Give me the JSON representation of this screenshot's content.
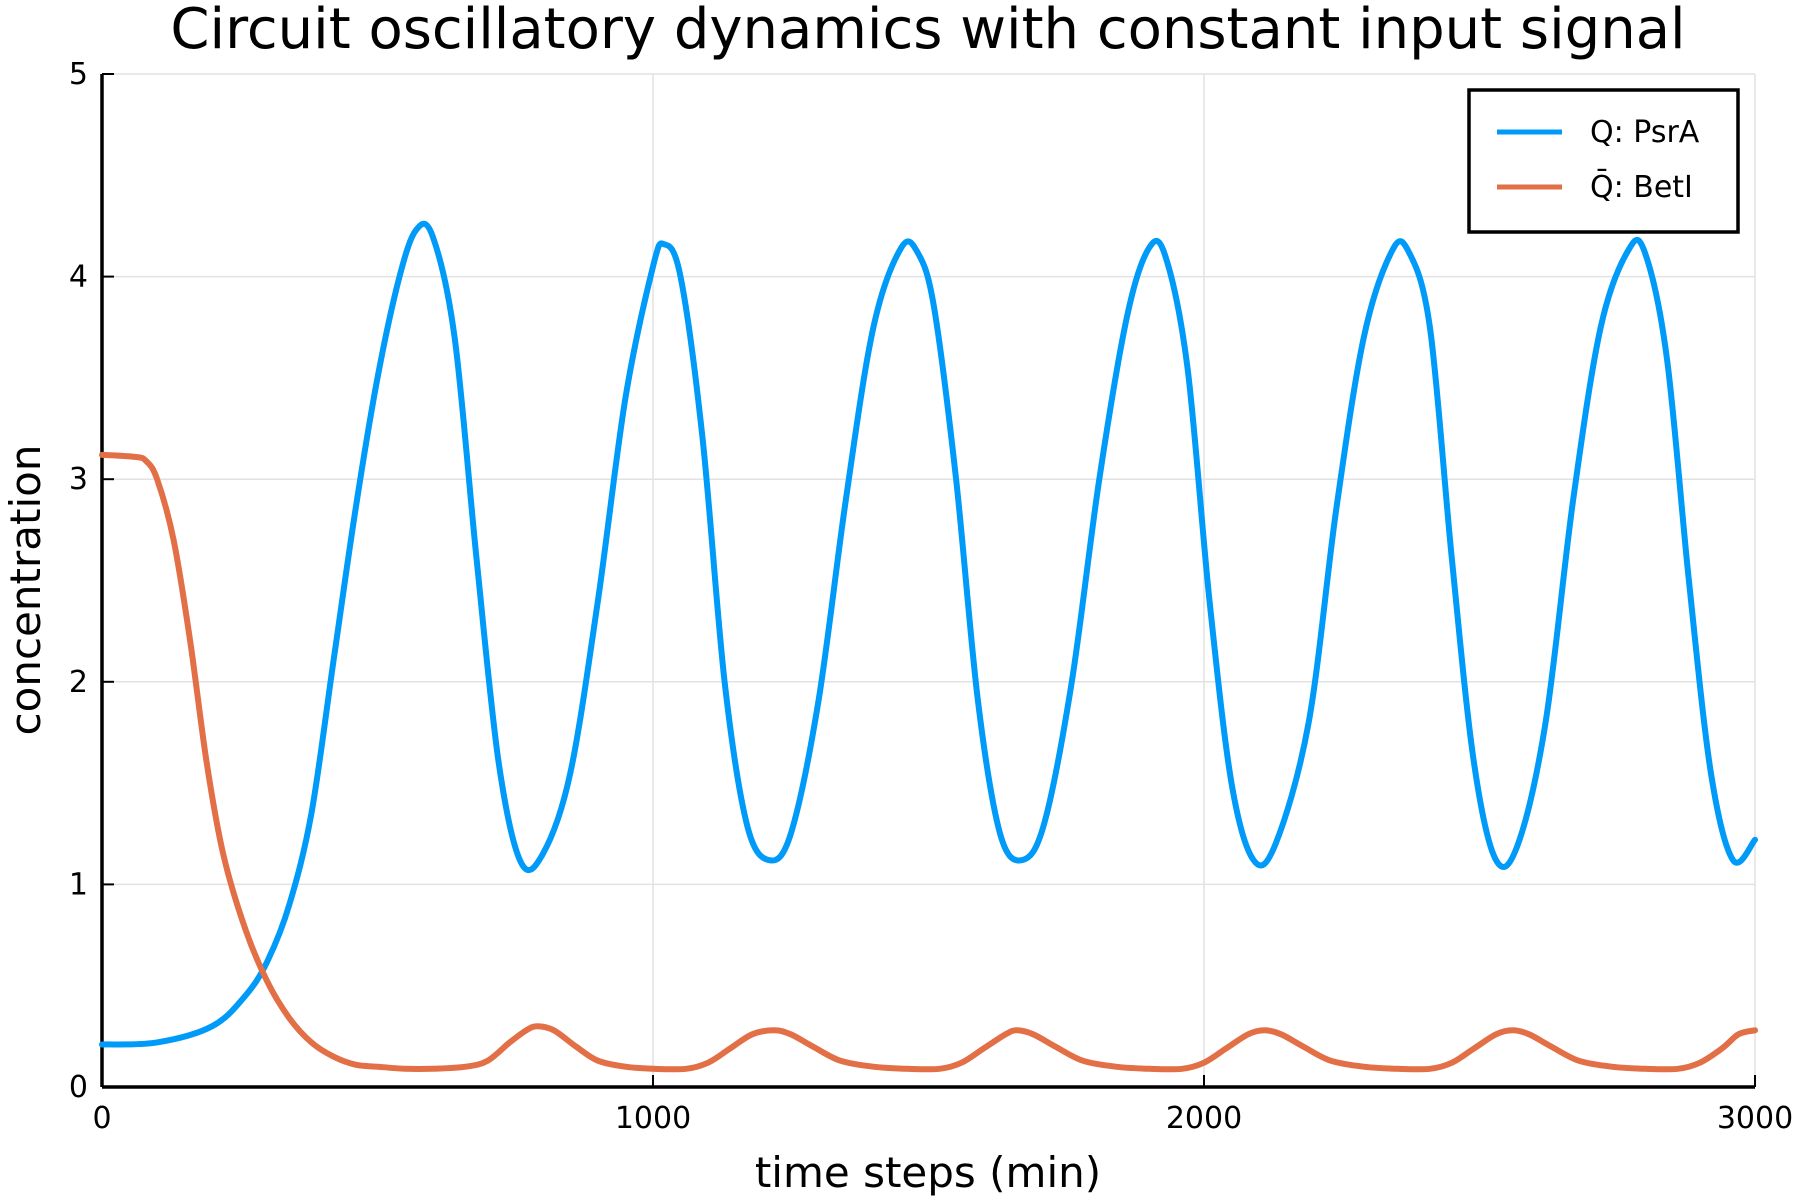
{
  "chart_data": {
    "type": "line",
    "title": "Circuit oscillatory dynamics with constant input signal",
    "xlabel": "time steps (min)",
    "ylabel": "concentration",
    "xlim": [
      0,
      3000
    ],
    "ylim": [
      0,
      5
    ],
    "xticks": [
      0,
      1000,
      2000,
      3000
    ],
    "yticks": [
      0,
      1,
      2,
      3,
      4,
      5
    ],
    "grid": true,
    "legend_position": "top-right",
    "series": [
      {
        "name": "Q: PsrA",
        "color": "#009af9",
        "x": [
          0,
          100,
          200,
          260,
          300,
          340,
          380,
          420,
          460,
          500,
          540,
          570,
          600,
          640,
          680,
          720,
          760,
          800,
          850,
          900,
          950,
          1000,
          1020,
          1050,
          1090,
          1130,
          1170,
          1210,
          1250,
          1300,
          1350,
          1400,
          1450,
          1480,
          1510,
          1550,
          1590,
          1630,
          1670,
          1710,
          1760,
          1810,
          1860,
          1900,
          1930,
          1970,
          2010,
          2050,
          2090,
          2130,
          2190,
          2240,
          2290,
          2340,
          2370,
          2410,
          2450,
          2490,
          2530,
          2570,
          2620,
          2670,
          2720,
          2770,
          2800,
          2840,
          2880,
          2920,
          2960,
          3000
        ],
        "y": [
          0.21,
          0.22,
          0.3,
          0.45,
          0.62,
          0.9,
          1.35,
          2.1,
          2.85,
          3.5,
          4.0,
          4.23,
          4.2,
          3.7,
          2.6,
          1.6,
          1.11,
          1.15,
          1.55,
          2.4,
          3.4,
          4.05,
          4.16,
          4.0,
          3.2,
          2.0,
          1.3,
          1.12,
          1.25,
          1.9,
          2.9,
          3.75,
          4.14,
          4.12,
          3.85,
          3.0,
          1.9,
          1.25,
          1.12,
          1.3,
          2.0,
          3.0,
          3.8,
          4.14,
          4.1,
          3.55,
          2.4,
          1.5,
          1.12,
          1.2,
          1.8,
          2.85,
          3.7,
          4.12,
          4.13,
          3.75,
          2.6,
          1.6,
          1.12,
          1.2,
          1.8,
          2.9,
          3.75,
          4.13,
          4.12,
          3.6,
          2.5,
          1.55,
          1.12,
          1.22
        ]
      },
      {
        "name": "Q̄: BetI",
        "color": "#e26f46",
        "x": [
          0,
          60,
          80,
          100,
          130,
          160,
          190,
          220,
          260,
          300,
          340,
          380,
          420,
          460,
          500,
          550,
          600,
          660,
          700,
          740,
          770,
          790,
          820,
          860,
          900,
          950,
          1000,
          1060,
          1100,
          1140,
          1180,
          1220,
          1250,
          1290,
          1340,
          1400,
          1460,
          1520,
          1560,
          1600,
          1640,
          1660,
          1690,
          1730,
          1780,
          1840,
          1900,
          1960,
          2000,
          2040,
          2080,
          2110,
          2140,
          2180,
          2230,
          2290,
          2350,
          2410,
          2450,
          2490,
          2530,
          2560,
          2590,
          2630,
          2680,
          2740,
          2800,
          2860,
          2900,
          2940,
          2970,
          3000
        ],
        "y": [
          3.12,
          3.11,
          3.09,
          3.0,
          2.7,
          2.2,
          1.6,
          1.15,
          0.78,
          0.52,
          0.34,
          0.22,
          0.15,
          0.11,
          0.1,
          0.09,
          0.09,
          0.1,
          0.13,
          0.22,
          0.28,
          0.3,
          0.28,
          0.2,
          0.13,
          0.1,
          0.09,
          0.09,
          0.12,
          0.19,
          0.26,
          0.28,
          0.26,
          0.2,
          0.13,
          0.1,
          0.09,
          0.09,
          0.12,
          0.19,
          0.26,
          0.28,
          0.26,
          0.2,
          0.13,
          0.1,
          0.09,
          0.09,
          0.12,
          0.19,
          0.26,
          0.28,
          0.26,
          0.2,
          0.13,
          0.1,
          0.09,
          0.09,
          0.12,
          0.19,
          0.26,
          0.28,
          0.26,
          0.2,
          0.13,
          0.1,
          0.09,
          0.09,
          0.12,
          0.19,
          0.26,
          0.28
        ]
      }
    ]
  }
}
